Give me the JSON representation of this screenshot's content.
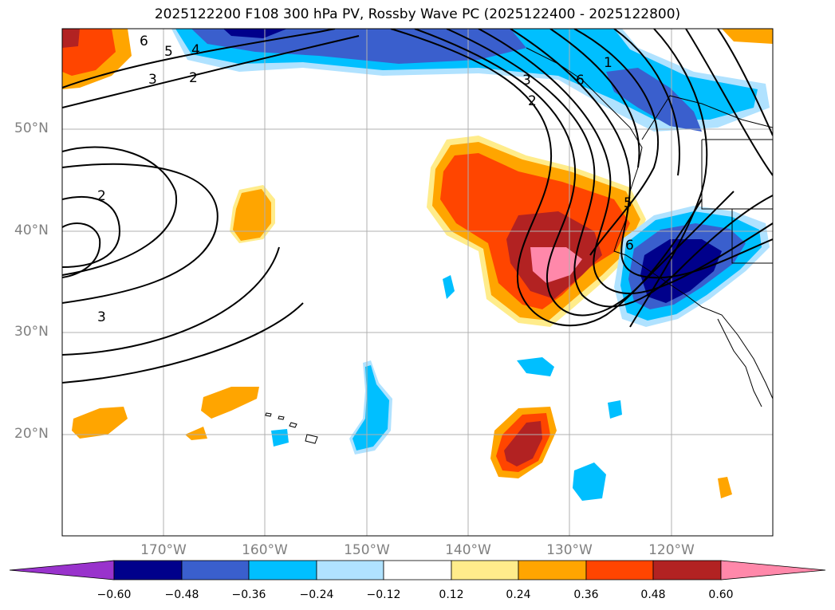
{
  "title": "2025122200 F108 300 hPa PV, Rossby Wave PC (2025122400 - 2025122800)",
  "lat_labels": [
    "50°N",
    "40°N",
    "30°N",
    "20°N"
  ],
  "lon_labels": [
    "170°W",
    "160°W",
    "150°W",
    "140°W",
    "130°W",
    "120°W"
  ],
  "colorbar": {
    "ticks": [
      "−0.60",
      "−0.48",
      "−0.36",
      "−0.24",
      "−0.12",
      "0.12",
      "0.24",
      "0.36",
      "0.48",
      "0.60"
    ],
    "colors": [
      "#9933cc",
      "#00008b",
      "#3a5fcd",
      "#00bfff",
      "#b0e2ff",
      "#ffffff",
      "#ffec8b",
      "#ffa500",
      "#ff4500",
      "#b22222",
      "#ff88aa"
    ]
  },
  "contour_labels": [
    "6",
    "5",
    "4",
    "3",
    "2",
    "2",
    "3",
    "1",
    "6",
    "3",
    "2",
    "5",
    "6"
  ]
}
